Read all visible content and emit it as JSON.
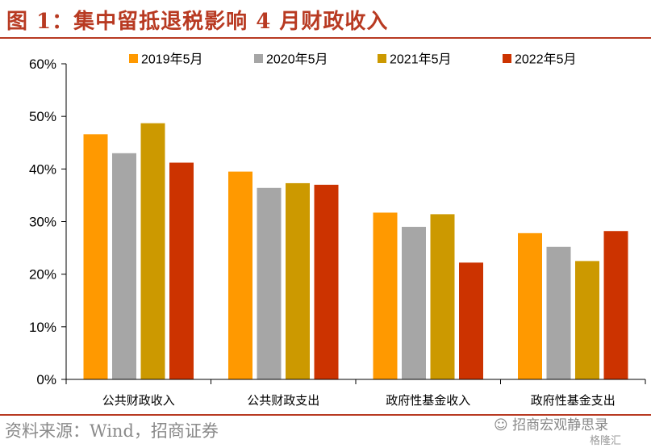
{
  "figure": {
    "title": "图 1：集中留抵退税影响 4 月财政收入",
    "source": "资料来源：Wind，招商证券",
    "watermark": "招商宏观静思录",
    "watermark_small": "格隆汇"
  },
  "chart_data": {
    "type": "bar",
    "categories": [
      "公共财政收入",
      "公共财政支出",
      "政府性基金收入",
      "政府性基金支出"
    ],
    "series": [
      {
        "name": "2019年5月",
        "color": "#ff9900",
        "values": [
          46.6,
          39.5,
          31.7,
          27.8
        ]
      },
      {
        "name": "2020年5月",
        "color": "#a6a6a6",
        "values": [
          43.0,
          36.4,
          29.0,
          25.2
        ]
      },
      {
        "name": "2021年5月",
        "color": "#cc9900",
        "values": [
          48.7,
          37.3,
          31.4,
          22.5
        ]
      },
      {
        "name": "2022年5月",
        "color": "#cc3300",
        "values": [
          41.2,
          37.0,
          22.2,
          28.2
        ]
      }
    ],
    "yticks": [
      "0%",
      "10%",
      "20%",
      "30%",
      "40%",
      "50%",
      "60%"
    ],
    "ylim": [
      0,
      60
    ],
    "grid": false,
    "legend_position": "top"
  }
}
